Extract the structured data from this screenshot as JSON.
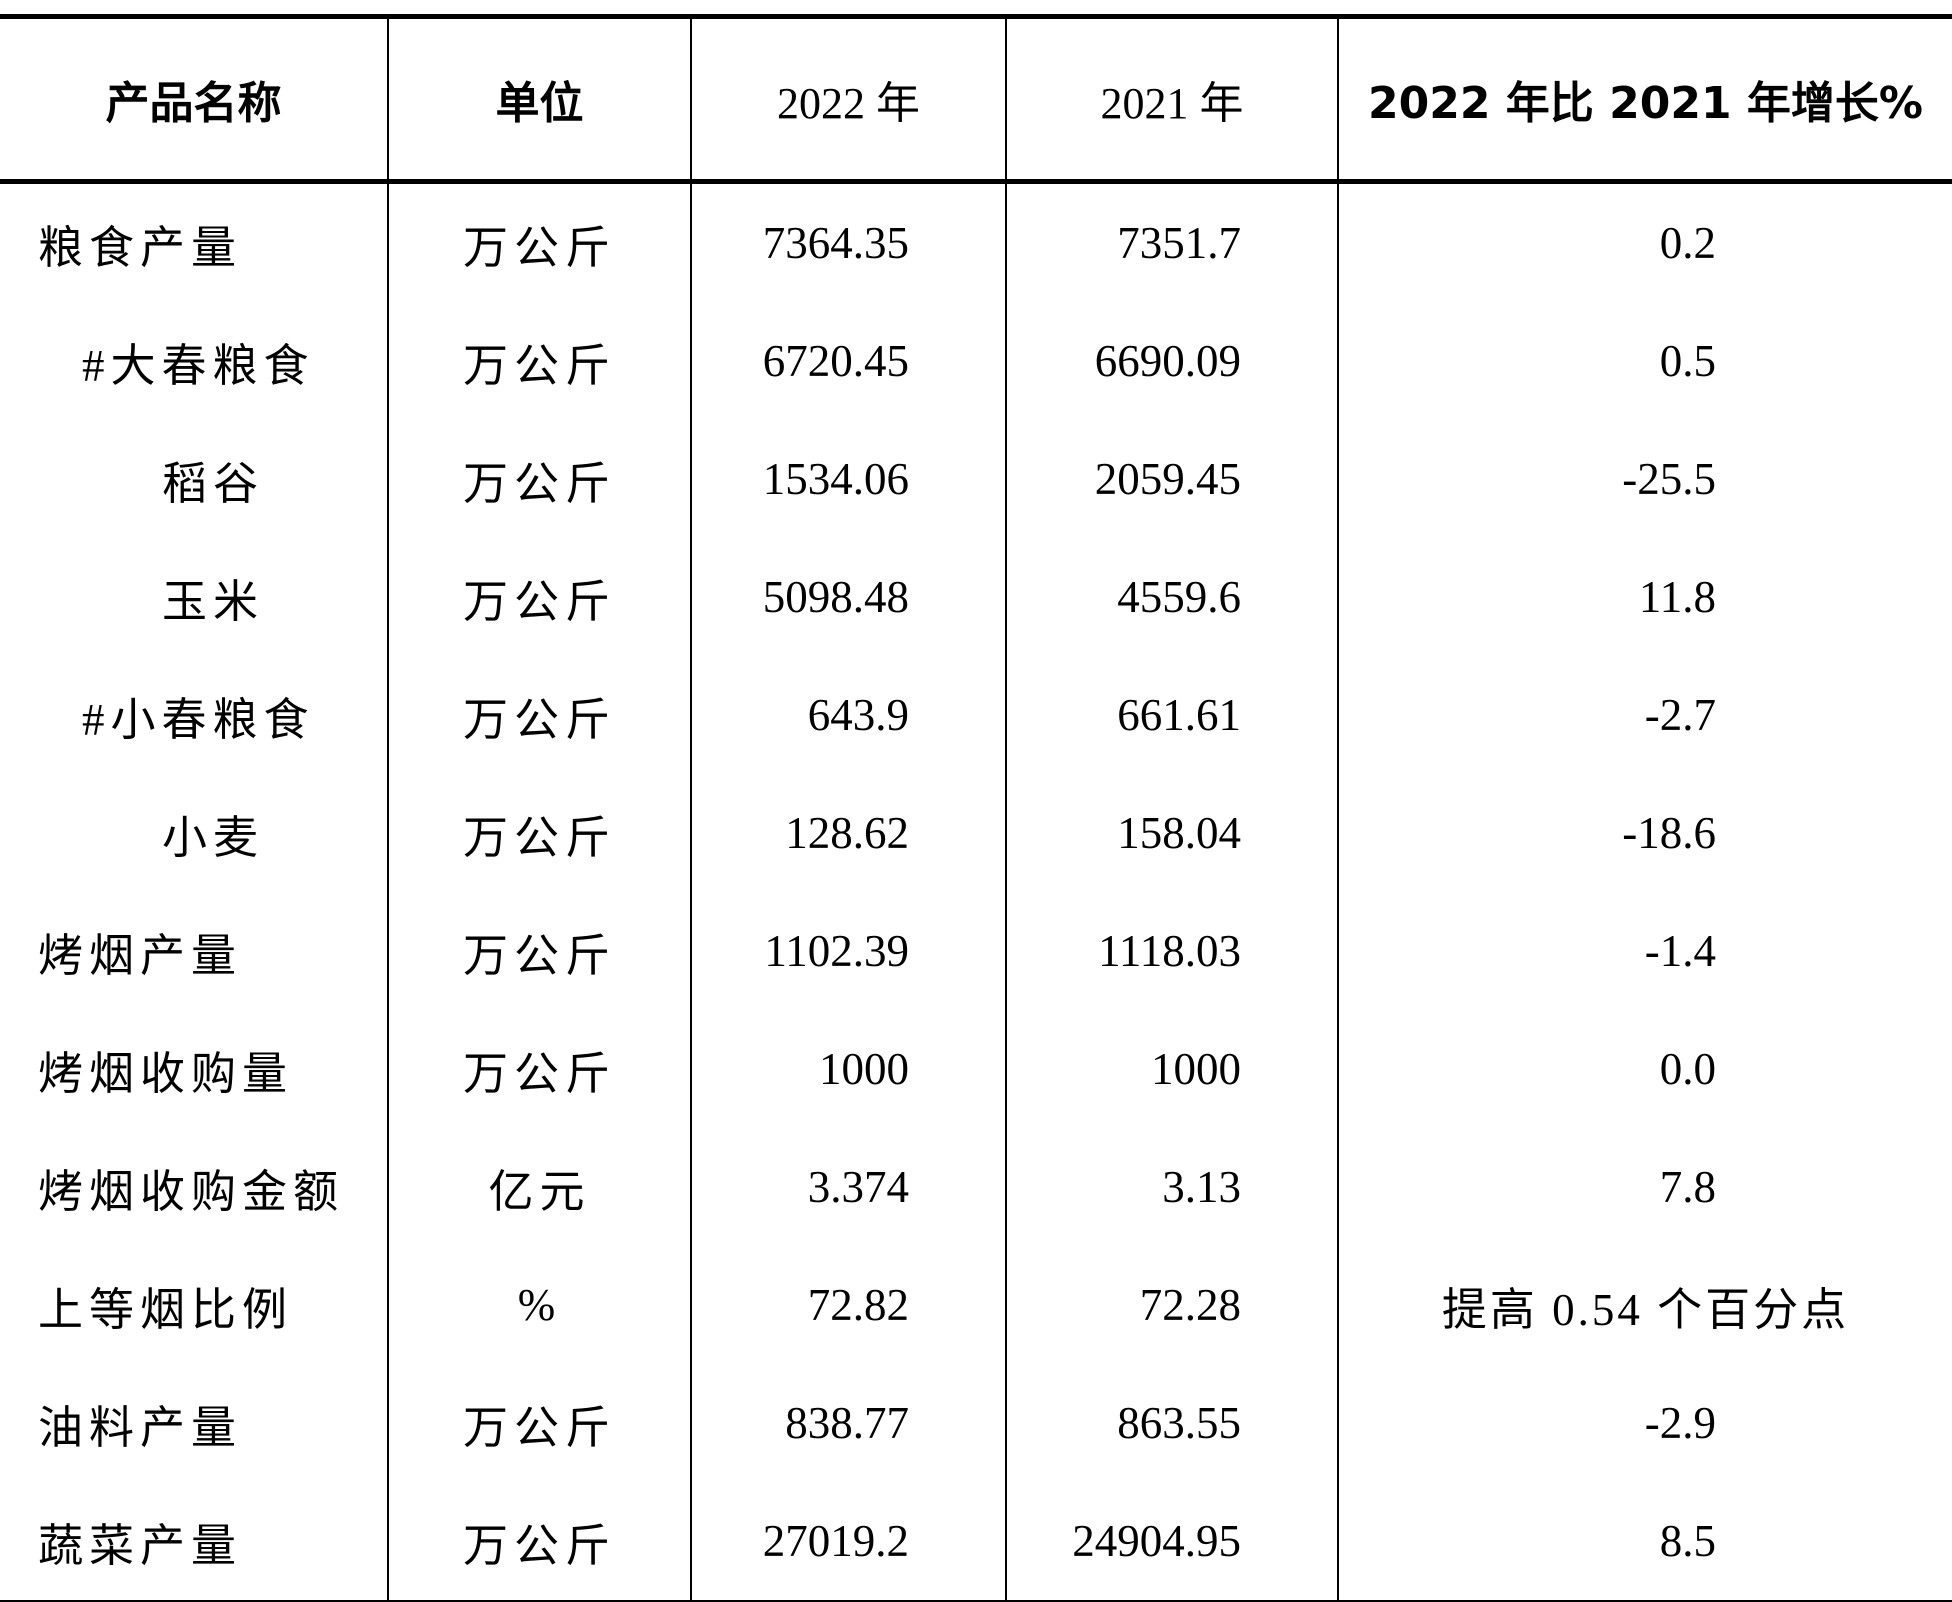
{
  "table": {
    "header": [
      "产品名称",
      "单位",
      "2022 年",
      "2021 年",
      "2022 年比 2021 年增长%"
    ],
    "rows": [
      [
        "粮食产量",
        "万公斤",
        "7364.35",
        "7351.7",
        "0.2"
      ],
      [
        "#大春粮食",
        "万公斤",
        "6720.45",
        "6690.09",
        "0.5"
      ],
      [
        "稻谷",
        "万公斤",
        "1534.06",
        "2059.45",
        "-25.5"
      ],
      [
        "玉米",
        "万公斤",
        "5098.48",
        "4559.6",
        "11.8"
      ],
      [
        "#小春粮食",
        "万公斤",
        "643.9",
        "661.61",
        "-2.7"
      ],
      [
        "小麦",
        "万公斤",
        "128.62",
        "158.04",
        "-18.6"
      ],
      [
        "烤烟产量",
        "万公斤",
        "1102.39",
        "1118.03",
        "-1.4"
      ],
      [
        "烤烟收购量",
        "万公斤",
        "1000",
        "1000",
        "0.0"
      ],
      [
        "烤烟收购金额",
        "亿元",
        "3.374",
        "3.13",
        "7.8"
      ],
      [
        "上等烟比例",
        "%",
        "72.82",
        "72.28",
        "提高 0.54 个百分点"
      ],
      [
        "油料产量",
        "万公斤",
        "838.77",
        "863.55",
        "-2.9"
      ],
      [
        "蔬菜产量",
        "万公斤",
        "27019.2",
        "24904.95",
        "8.5"
      ]
    ]
  }
}
